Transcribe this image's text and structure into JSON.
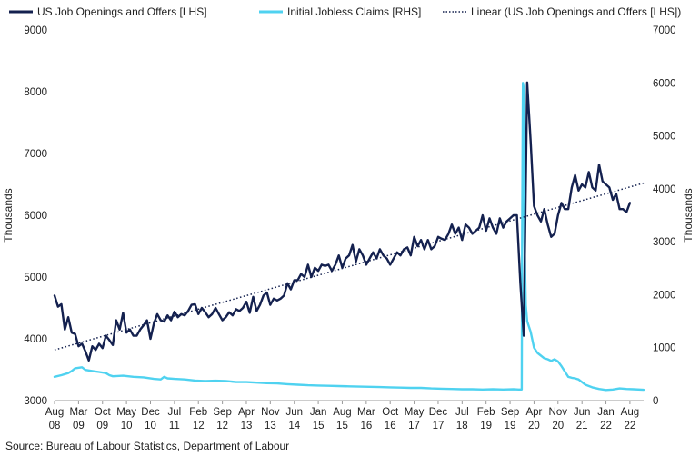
{
  "chart_data": {
    "type": "line",
    "title": "",
    "source": "Source: Bureau of Labour Statistics, Department of Labour",
    "y_left": {
      "label": "Thousands",
      "range": [
        3000,
        9000
      ],
      "ticks": [
        3000,
        4000,
        5000,
        6000,
        7000,
        8000,
        9000
      ]
    },
    "y_right": {
      "label": "Thousands",
      "range": [
        0,
        7000
      ],
      "ticks": [
        0,
        1000,
        2000,
        3000,
        4000,
        5000,
        6000,
        7000
      ]
    },
    "x_range": [
      2008.583,
      2022.917
    ],
    "x_ticks": [
      {
        "month": "Aug",
        "year": "08",
        "x": 2008.583
      },
      {
        "month": "Mar",
        "year": "09",
        "x": 2009.167
      },
      {
        "month": "Oct",
        "year": "09",
        "x": 2009.75
      },
      {
        "month": "May",
        "year": "10",
        "x": 2010.333
      },
      {
        "month": "Dec",
        "year": "10",
        "x": 2010.917
      },
      {
        "month": "Jul",
        "year": "11",
        "x": 2011.5
      },
      {
        "month": "Feb",
        "year": "12",
        "x": 2012.083
      },
      {
        "month": "Sep",
        "year": "12",
        "x": 2012.667
      },
      {
        "month": "Apr",
        "year": "13",
        "x": 2013.25
      },
      {
        "month": "Nov",
        "year": "13",
        "x": 2013.833
      },
      {
        "month": "Jun",
        "year": "14",
        "x": 2014.417
      },
      {
        "month": "Jan",
        "year": "15",
        "x": 2015.0
      },
      {
        "month": "Aug",
        "year": "15",
        "x": 2015.583
      },
      {
        "month": "Mar",
        "year": "16",
        "x": 2016.167
      },
      {
        "month": "Oct",
        "year": "16",
        "x": 2016.75
      },
      {
        "month": "May",
        "year": "17",
        "x": 2017.333
      },
      {
        "month": "Dec",
        "year": "17",
        "x": 2017.917
      },
      {
        "month": "Jul",
        "year": "18",
        "x": 2018.5
      },
      {
        "month": "Feb",
        "year": "19",
        "x": 2019.083
      },
      {
        "month": "Sep",
        "year": "19",
        "x": 2019.667
      },
      {
        "month": "Apr",
        "year": "20",
        "x": 2020.25
      },
      {
        "month": "Nov",
        "year": "20",
        "x": 2020.833
      },
      {
        "month": "Jun",
        "year": "21",
        "x": 2021.417
      },
      {
        "month": "Jan",
        "year": "22",
        "x": 2022.0
      },
      {
        "month": "Aug",
        "year": "22",
        "x": 2022.583
      }
    ],
    "legend_position": "top",
    "series": [
      {
        "name": "US Job Openings and Offers [LHS]",
        "axis": "left",
        "color": "#14214f",
        "style": "solid",
        "points": [
          [
            2008.583,
            4700
          ],
          [
            2008.667,
            4520
          ],
          [
            2008.75,
            4560
          ],
          [
            2008.833,
            4150
          ],
          [
            2008.917,
            4350
          ],
          [
            2009.0,
            4100
          ],
          [
            2009.083,
            4080
          ],
          [
            2009.167,
            3880
          ],
          [
            2009.25,
            3920
          ],
          [
            2009.333,
            3800
          ],
          [
            2009.417,
            3650
          ],
          [
            2009.5,
            3880
          ],
          [
            2009.583,
            3820
          ],
          [
            2009.667,
            3920
          ],
          [
            2009.75,
            3850
          ],
          [
            2009.833,
            4050
          ],
          [
            2009.917,
            3980
          ],
          [
            2010.0,
            3900
          ],
          [
            2010.083,
            4300
          ],
          [
            2010.167,
            4150
          ],
          [
            2010.25,
            4420
          ],
          [
            2010.333,
            4100
          ],
          [
            2010.417,
            4150
          ],
          [
            2010.5,
            4050
          ],
          [
            2010.583,
            4050
          ],
          [
            2010.667,
            4150
          ],
          [
            2010.75,
            4220
          ],
          [
            2010.833,
            4300
          ],
          [
            2010.917,
            4000
          ],
          [
            2011.0,
            4250
          ],
          [
            2011.083,
            4400
          ],
          [
            2011.167,
            4300
          ],
          [
            2011.25,
            4280
          ],
          [
            2011.333,
            4380
          ],
          [
            2011.417,
            4300
          ],
          [
            2011.5,
            4440
          ],
          [
            2011.583,
            4350
          ],
          [
            2011.667,
            4400
          ],
          [
            2011.75,
            4380
          ],
          [
            2011.833,
            4450
          ],
          [
            2011.917,
            4550
          ],
          [
            2012.0,
            4560
          ],
          [
            2012.083,
            4400
          ],
          [
            2012.167,
            4500
          ],
          [
            2012.25,
            4430
          ],
          [
            2012.333,
            4350
          ],
          [
            2012.417,
            4400
          ],
          [
            2012.5,
            4500
          ],
          [
            2012.583,
            4400
          ],
          [
            2012.667,
            4300
          ],
          [
            2012.75,
            4350
          ],
          [
            2012.833,
            4430
          ],
          [
            2012.917,
            4380
          ],
          [
            2013.0,
            4480
          ],
          [
            2013.083,
            4450
          ],
          [
            2013.167,
            4500
          ],
          [
            2013.25,
            4600
          ],
          [
            2013.333,
            4420
          ],
          [
            2013.417,
            4680
          ],
          [
            2013.5,
            4450
          ],
          [
            2013.583,
            4550
          ],
          [
            2013.667,
            4700
          ],
          [
            2013.75,
            4750
          ],
          [
            2013.833,
            4550
          ],
          [
            2013.917,
            4650
          ],
          [
            2014.0,
            4620
          ],
          [
            2014.083,
            4650
          ],
          [
            2014.167,
            4700
          ],
          [
            2014.25,
            4900
          ],
          [
            2014.333,
            4800
          ],
          [
            2014.417,
            4950
          ],
          [
            2014.5,
            4950
          ],
          [
            2014.583,
            5050
          ],
          [
            2014.667,
            5000
          ],
          [
            2014.75,
            5200
          ],
          [
            2014.833,
            5000
          ],
          [
            2014.917,
            5150
          ],
          [
            2015.0,
            5100
          ],
          [
            2015.083,
            5200
          ],
          [
            2015.167,
            5180
          ],
          [
            2015.25,
            5200
          ],
          [
            2015.333,
            5100
          ],
          [
            2015.417,
            5200
          ],
          [
            2015.5,
            5350
          ],
          [
            2015.583,
            5150
          ],
          [
            2015.667,
            5300
          ],
          [
            2015.75,
            5350
          ],
          [
            2015.833,
            5520
          ],
          [
            2015.917,
            5250
          ],
          [
            2016.0,
            5450
          ],
          [
            2016.083,
            5350
          ],
          [
            2016.167,
            5200
          ],
          [
            2016.25,
            5300
          ],
          [
            2016.333,
            5400
          ],
          [
            2016.417,
            5300
          ],
          [
            2016.5,
            5450
          ],
          [
            2016.583,
            5350
          ],
          [
            2016.667,
            5300
          ],
          [
            2016.75,
            5200
          ],
          [
            2016.833,
            5300
          ],
          [
            2016.917,
            5400
          ],
          [
            2017.0,
            5350
          ],
          [
            2017.083,
            5450
          ],
          [
            2017.167,
            5480
          ],
          [
            2017.25,
            5350
          ],
          [
            2017.333,
            5650
          ],
          [
            2017.417,
            5500
          ],
          [
            2017.5,
            5600
          ],
          [
            2017.583,
            5450
          ],
          [
            2017.667,
            5600
          ],
          [
            2017.75,
            5450
          ],
          [
            2017.833,
            5500
          ],
          [
            2017.917,
            5650
          ],
          [
            2018.0,
            5620
          ],
          [
            2018.083,
            5600
          ],
          [
            2018.167,
            5700
          ],
          [
            2018.25,
            5850
          ],
          [
            2018.333,
            5700
          ],
          [
            2018.417,
            5800
          ],
          [
            2018.5,
            5600
          ],
          [
            2018.583,
            5850
          ],
          [
            2018.667,
            5800
          ],
          [
            2018.75,
            5700
          ],
          [
            2018.833,
            5750
          ],
          [
            2018.917,
            5800
          ],
          [
            2019.0,
            6000
          ],
          [
            2019.083,
            5750
          ],
          [
            2019.167,
            5950
          ],
          [
            2019.25,
            5800
          ],
          [
            2019.333,
            5700
          ],
          [
            2019.417,
            5950
          ],
          [
            2019.5,
            5800
          ],
          [
            2019.583,
            5900
          ],
          [
            2019.667,
            5950
          ],
          [
            2019.75,
            6000
          ],
          [
            2019.833,
            6000
          ],
          [
            2019.917,
            4900
          ],
          [
            2020.0,
            4050
          ],
          [
            2020.083,
            8150
          ],
          [
            2020.167,
            7200
          ],
          [
            2020.25,
            6150
          ],
          [
            2020.333,
            6000
          ],
          [
            2020.417,
            5900
          ],
          [
            2020.5,
            6100
          ],
          [
            2020.583,
            5850
          ],
          [
            2020.667,
            5650
          ],
          [
            2020.75,
            5700
          ],
          [
            2020.833,
            6000
          ],
          [
            2020.917,
            6200
          ],
          [
            2021.0,
            6100
          ],
          [
            2021.083,
            6100
          ],
          [
            2021.167,
            6450
          ],
          [
            2021.25,
            6650
          ],
          [
            2021.333,
            6400
          ],
          [
            2021.417,
            6500
          ],
          [
            2021.5,
            6450
          ],
          [
            2021.583,
            6700
          ],
          [
            2021.667,
            6450
          ],
          [
            2021.75,
            6400
          ],
          [
            2021.833,
            6820
          ],
          [
            2021.917,
            6550
          ],
          [
            2022.0,
            6500
          ],
          [
            2022.083,
            6450
          ],
          [
            2022.167,
            6250
          ],
          [
            2022.25,
            6350
          ],
          [
            2022.333,
            6100
          ],
          [
            2022.417,
            6100
          ],
          [
            2022.5,
            6050
          ],
          [
            2022.583,
            6200
          ]
        ]
      },
      {
        "name": "Initial Jobless Claims [RHS]",
        "axis": "right",
        "color": "#4fd2f0",
        "style": "solid",
        "points": [
          [
            2008.583,
            450
          ],
          [
            2008.75,
            480
          ],
          [
            2008.917,
            520
          ],
          [
            2009.0,
            560
          ],
          [
            2009.083,
            610
          ],
          [
            2009.25,
            630
          ],
          [
            2009.333,
            580
          ],
          [
            2009.5,
            560
          ],
          [
            2009.667,
            540
          ],
          [
            2009.833,
            520
          ],
          [
            2009.917,
            480
          ],
          [
            2010.0,
            460
          ],
          [
            2010.25,
            470
          ],
          [
            2010.5,
            450
          ],
          [
            2010.75,
            440
          ],
          [
            2011.0,
            410
          ],
          [
            2011.167,
            400
          ],
          [
            2011.25,
            450
          ],
          [
            2011.333,
            420
          ],
          [
            2011.5,
            410
          ],
          [
            2011.75,
            400
          ],
          [
            2012.0,
            380
          ],
          [
            2012.25,
            370
          ],
          [
            2012.5,
            375
          ],
          [
            2012.75,
            370
          ],
          [
            2013.0,
            350
          ],
          [
            2013.25,
            350
          ],
          [
            2013.5,
            340
          ],
          [
            2013.75,
            330
          ],
          [
            2014.0,
            325
          ],
          [
            2014.25,
            310
          ],
          [
            2014.5,
            300
          ],
          [
            2014.75,
            290
          ],
          [
            2015.0,
            285
          ],
          [
            2015.25,
            280
          ],
          [
            2015.5,
            275
          ],
          [
            2015.75,
            270
          ],
          [
            2016.0,
            265
          ],
          [
            2016.25,
            260
          ],
          [
            2016.5,
            255
          ],
          [
            2016.75,
            250
          ],
          [
            2017.0,
            245
          ],
          [
            2017.25,
            240
          ],
          [
            2017.5,
            240
          ],
          [
            2017.75,
            230
          ],
          [
            2018.0,
            225
          ],
          [
            2018.25,
            220
          ],
          [
            2018.5,
            215
          ],
          [
            2018.75,
            215
          ],
          [
            2019.0,
            210
          ],
          [
            2019.25,
            215
          ],
          [
            2019.5,
            210
          ],
          [
            2019.75,
            215
          ],
          [
            2019.875,
            210
          ],
          [
            2019.95,
            210
          ],
          [
            2019.96,
            3000
          ],
          [
            2019.98,
            6000
          ],
          [
            2020.0,
            5900
          ],
          [
            2020.02,
            3000
          ],
          [
            2020.05,
            1800
          ],
          [
            2020.083,
            1500
          ],
          [
            2020.167,
            1300
          ],
          [
            2020.25,
            1000
          ],
          [
            2020.333,
            900
          ],
          [
            2020.417,
            850
          ],
          [
            2020.5,
            800
          ],
          [
            2020.583,
            780
          ],
          [
            2020.667,
            750
          ],
          [
            2020.75,
            780
          ],
          [
            2020.833,
            740
          ],
          [
            2020.917,
            650
          ],
          [
            2021.0,
            550
          ],
          [
            2021.083,
            450
          ],
          [
            2021.167,
            430
          ],
          [
            2021.25,
            420
          ],
          [
            2021.333,
            400
          ],
          [
            2021.5,
            300
          ],
          [
            2021.667,
            250
          ],
          [
            2021.833,
            220
          ],
          [
            2022.0,
            200
          ],
          [
            2022.167,
            210
          ],
          [
            2022.333,
            230
          ],
          [
            2022.5,
            220
          ],
          [
            2022.667,
            215
          ],
          [
            2022.917,
            205
          ]
        ]
      },
      {
        "name": "Linear (US Job Openings and Offers [LHS])",
        "axis": "left",
        "color": "#14214f",
        "style": "dotted",
        "points": [
          [
            2008.583,
            3820
          ],
          [
            2022.917,
            6520
          ]
        ]
      }
    ]
  }
}
